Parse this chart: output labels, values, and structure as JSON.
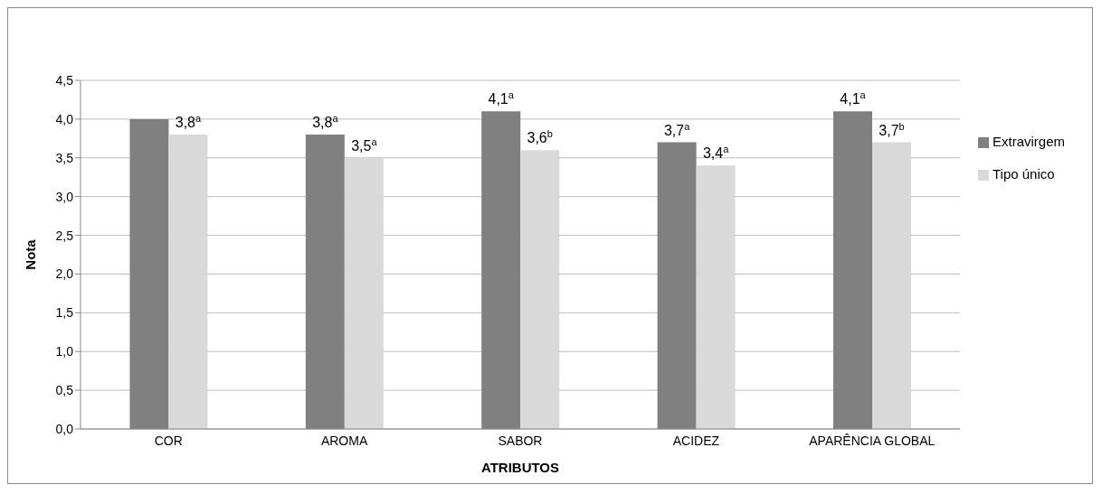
{
  "chart_data": {
    "type": "bar",
    "xlabel": "ATRIBUTOS",
    "ylabel": "Nota",
    "categories": [
      "COR",
      "AROMA",
      "SABOR",
      "ACIDEZ",
      "APARÊNCIA GLOBAL"
    ],
    "series": [
      {
        "name": "Extravirgem",
        "color": "#808080",
        "values": [
          4.0,
          3.8,
          4.1,
          3.7,
          4.1
        ],
        "value_labels": [
          null,
          "3,8$^{a}$",
          "4,1$^{a}$",
          "3,7$^{a}$",
          "4,1$^{a}$"
        ]
      },
      {
        "name": "Tipo único",
        "color": "#d9d9d9",
        "values": [
          3.8,
          3.5,
          3.6,
          3.4,
          3.7
        ],
        "value_labels": [
          "3,8$^{a}$",
          "3,5$^{a}$",
          "3,6$^{b}$",
          "3,4$^{a}$",
          "3,7$^{b}$"
        ]
      }
    ],
    "ylim": [
      0,
      4.5
    ],
    "yticks": [
      {
        "value": 0,
        "label": "0,0"
      },
      {
        "value": 0.5,
        "label": "0,5"
      },
      {
        "value": 1,
        "label": "1,0"
      },
      {
        "value": 1.5,
        "label": "1,5"
      },
      {
        "value": 2,
        "label": "2,0"
      },
      {
        "value": 2.5,
        "label": "2,5"
      },
      {
        "value": 3,
        "label": "3,0"
      },
      {
        "value": 3.5,
        "label": "3,5"
      },
      {
        "value": 4,
        "label": "4,0"
      },
      {
        "value": 4.5,
        "label": "4,5"
      }
    ],
    "grid": "y",
    "legend": "right"
  }
}
